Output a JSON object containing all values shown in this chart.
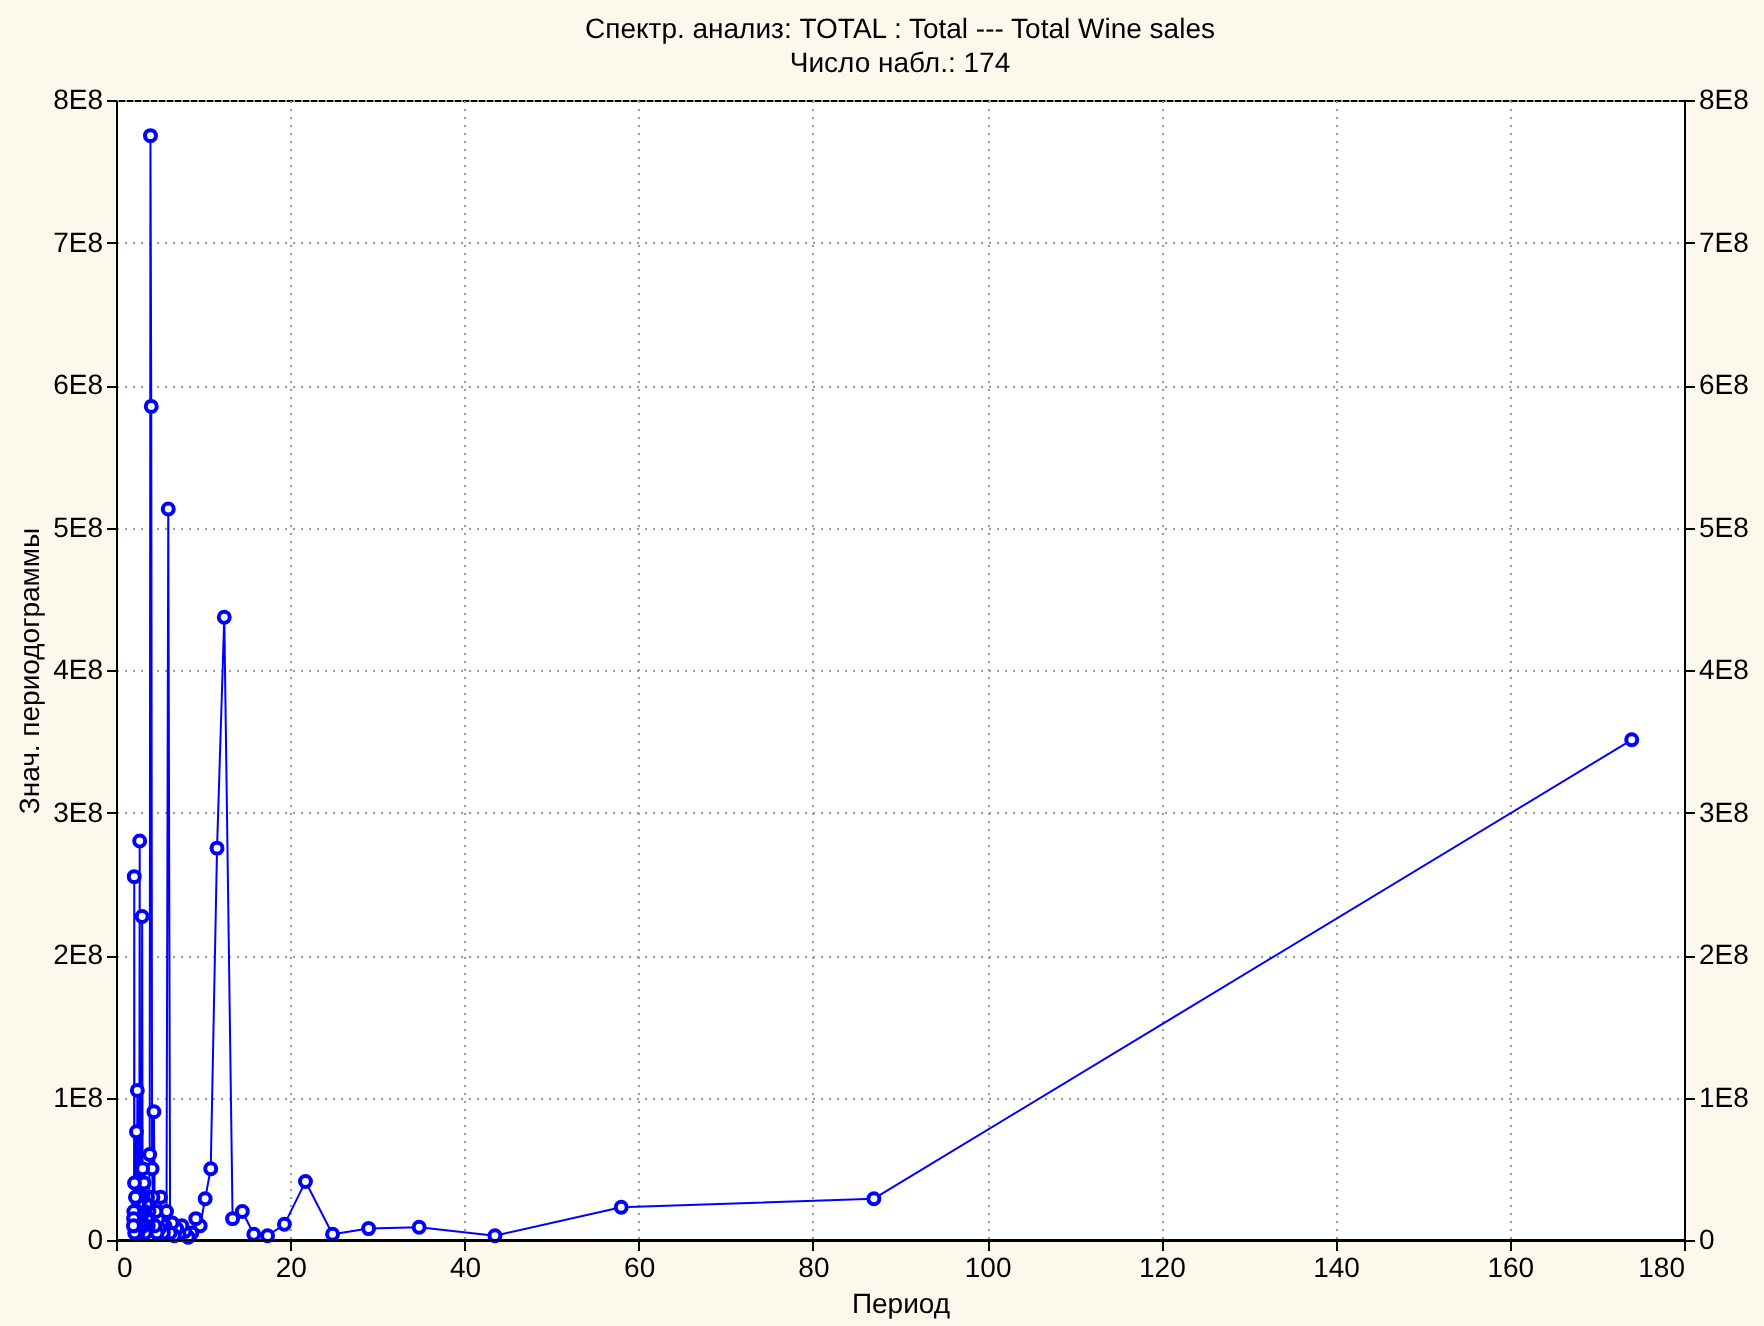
{
  "chart_data": {
    "type": "line",
    "title": "Спектр. анализ: TOTAL   : Total --- Total Wine sales",
    "subtitle": "Число набл.: 174",
    "xlabel": "Период",
    "ylabel": "Знач. периодограммы",
    "x": [
      174,
      87,
      58,
      43.5,
      34.8,
      29,
      24.857,
      21.75,
      19.333,
      17.4,
      15.818,
      14.5,
      13.385,
      12.429,
      11.6,
      10.875,
      10.235,
      9.667,
      9.158,
      8.7,
      8.286,
      7.909,
      7.565,
      7.25,
      6.96,
      6.692,
      6.444,
      6.214,
      6,
      5.8,
      5.613,
      5.438,
      5.273,
      5.118,
      4.971,
      4.833,
      4.703,
      4.579,
      4.462,
      4.35,
      4.244,
      4.143,
      4.047,
      3.955,
      3.867,
      3.783,
      3.702,
      3.625,
      3.551,
      3.48,
      3.412,
      3.346,
      3.283,
      3.222,
      3.164,
      3.107,
      3.053,
      3,
      2.949,
      2.9,
      2.852,
      2.806,
      2.762,
      2.719,
      2.677,
      2.636,
      2.597,
      2.559,
      2.522,
      2.486,
      2.451,
      2.417,
      2.384,
      2.351,
      2.32,
      2.289,
      2.26,
      2.231,
      2.203,
      2.175,
      2.148,
      2.122,
      2.096,
      2.071,
      2.047,
      2.023,
      2
    ],
    "series": [
      {
        "color": "#0000ff",
        "values": [
          351000000.0,
          29000000.0,
          23000000.0,
          3000000.0,
          9000000.0,
          8000000.0,
          4000000.0,
          41000000.0,
          11000000.0,
          3000000.0,
          4000000.0,
          20000000.0,
          15000000.0,
          437000000.0,
          275000000.0,
          50000000.0,
          29000000.0,
          10000000.0,
          15000000.0,
          5000000.0,
          2000000.0,
          6000000.0,
          10000000.0,
          4000000.0,
          8000000.0,
          3000000.0,
          12000000.0,
          5000000.0,
          513000000.0,
          20000000.0,
          10000000.0,
          5000000.0,
          12000000.0,
          30000000.0,
          8000000.0,
          15000000.0,
          5000000.0,
          20000000.0,
          10000000.0,
          90000000.0,
          30000000.0,
          50000000.0,
          585000000.0,
          775000000.0,
          60000000.0,
          20000000.0,
          10000000.0,
          30000000.0,
          15000000.0,
          25000000.0,
          10000000.0,
          5000000.0,
          20000000.0,
          40000000.0,
          10000000.0,
          30000000.0,
          50000000.0,
          227000000.0,
          20000000.0,
          10000000.0,
          30000000.0,
          15000000.0,
          20000000.0,
          280000000.0,
          30000000.0,
          10000000.0,
          25000000.0,
          15000000.0,
          5000000.0,
          20000000.0,
          105000000.0,
          30000000.0,
          10000000.0,
          76000000.0,
          20000000.0,
          5000000.0,
          15000000.0,
          30000000.0,
          10000000.0,
          20000000.0,
          5000000.0,
          40000000.0,
          255000000.0,
          10000000.0,
          20000000.0,
          15000000.0,
          10000000.0
        ]
      }
    ],
    "xlim": [
      0,
      180
    ],
    "xticks": [
      0,
      20,
      40,
      60,
      80,
      100,
      120,
      140,
      160,
      180
    ],
    "ylim": [
      0,
      800000000.0
    ],
    "yticks": [
      0,
      {
        "value": 100000000.0,
        "label": "1E8"
      },
      {
        "value": 200000000.0,
        "label": "2E8"
      },
      {
        "value": 300000000.0,
        "label": "3E8"
      },
      {
        "value": 400000000.0,
        "label": "4E8"
      },
      {
        "value": 500000000.0,
        "label": "5E8"
      },
      {
        "value": 600000000.0,
        "label": "6E8"
      },
      {
        "value": 700000000.0,
        "label": "7E8"
      },
      {
        "value": 800000000.0,
        "label": "8E8"
      }
    ],
    "y2lim": [
      0,
      800000000.0
    ],
    "y2ticks": [
      0,
      {
        "value": 100000000.0,
        "label": "1E8"
      },
      {
        "value": 200000000.0,
        "label": "2E8"
      },
      {
        "value": 300000000.0,
        "label": "3E8"
      },
      {
        "value": 400000000.0,
        "label": "4E8"
      },
      {
        "value": 500000000.0,
        "label": "5E8"
      },
      {
        "value": 600000000.0,
        "label": "6E8"
      },
      {
        "value": 700000000.0,
        "label": "7E8"
      },
      {
        "value": 800000000.0,
        "label": "8E8"
      }
    ],
    "grid": true,
    "marker": "circle",
    "line_style": "solid"
  }
}
